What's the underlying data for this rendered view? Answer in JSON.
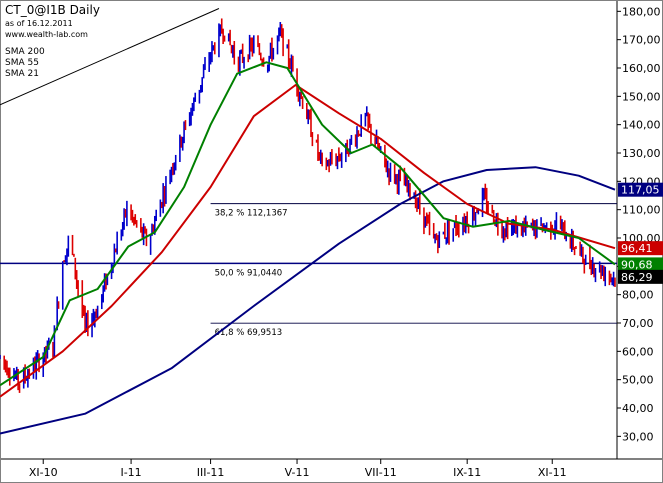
{
  "chart_data": {
    "type": "line",
    "title": "CT_0@I1B Daily",
    "subtitle": "as of 16.12.2011",
    "source": "www.wealth-lab.com",
    "y_range": [
      22,
      184
    ],
    "y_ticks": [
      "180,00",
      "170,00",
      "160,00",
      "150,00",
      "140,00",
      "130,00",
      "120,00",
      "110,00",
      "100,00",
      "90,00",
      "80,00",
      "70,00",
      "60,00",
      "50,00",
      "40,00",
      "30,00"
    ],
    "y_tick_values": [
      180,
      170,
      160,
      150,
      140,
      130,
      120,
      110,
      100,
      90,
      80,
      70,
      60,
      50,
      40,
      30
    ],
    "x_ticks": [
      "XI-10",
      "I-11",
      "III-11",
      "V-11",
      "VII-11",
      "IX-11",
      "XI-11"
    ],
    "x_tick_dates": [
      "2010-11-01",
      "2011-01-03",
      "2011-03-01",
      "2011-05-02",
      "2011-07-01",
      "2011-09-01",
      "2011-11-01"
    ],
    "date_range": [
      "2010-10-01",
      "2011-12-16"
    ],
    "legend": [
      {
        "name": "SMA 200",
        "color": "#000080"
      },
      {
        "name": "SMA 55",
        "color": "#cc0000"
      },
      {
        "name": "SMA 21",
        "color": "#008000"
      }
    ],
    "fib_levels": [
      {
        "label": "38,2 % 112,1367",
        "value": 112.1367,
        "start": "2011-03-01"
      },
      {
        "label": "50,0 % 91,0440",
        "value": 91.044,
        "start": "2010-10-01"
      },
      {
        "label": "61,8 % 69,9513",
        "value": 69.9513,
        "start": "2011-03-01"
      }
    ],
    "trendline": [
      {
        "date": "2010-10-01",
        "value": 147
      },
      {
        "date": "2011-03-07",
        "value": 181
      }
    ],
    "value_tags": [
      {
        "label": "117,05",
        "value": 117.05,
        "bg": "#000080",
        "fg": "#ffffff"
      },
      {
        "label": "96,41",
        "value": 96.41,
        "bg": "#cc0000",
        "fg": "#ffffff"
      },
      {
        "label": "90,68",
        "value": 90.68,
        "bg": "#008000",
        "fg": "#ffffff"
      },
      {
        "label": "86,29",
        "value": 86.29,
        "bg": "#000000",
        "fg": "#ffffff"
      }
    ],
    "price_path": [
      {
        "date": "2010-10-01",
        "value": 58
      },
      {
        "date": "2010-10-15",
        "value": 49
      },
      {
        "date": "2010-11-08",
        "value": 62
      },
      {
        "date": "2010-11-15",
        "value": 92
      },
      {
        "date": "2010-11-20",
        "value": 100
      },
      {
        "date": "2010-12-01",
        "value": 68
      },
      {
        "date": "2010-12-10",
        "value": 75
      },
      {
        "date": "2010-12-31",
        "value": 110
      },
      {
        "date": "2011-01-15",
        "value": 98
      },
      {
        "date": "2011-02-01",
        "value": 125
      },
      {
        "date": "2011-02-15",
        "value": 145
      },
      {
        "date": "2011-03-01",
        "value": 165
      },
      {
        "date": "2011-03-10",
        "value": 174
      },
      {
        "date": "2011-03-20",
        "value": 162
      },
      {
        "date": "2011-04-01",
        "value": 168
      },
      {
        "date": "2011-04-10",
        "value": 162
      },
      {
        "date": "2011-04-20",
        "value": 172
      },
      {
        "date": "2011-05-05",
        "value": 150
      },
      {
        "date": "2011-05-20",
        "value": 125
      },
      {
        "date": "2011-06-05",
        "value": 130
      },
      {
        "date": "2011-06-20",
        "value": 142
      },
      {
        "date": "2011-07-05",
        "value": 125
      },
      {
        "date": "2011-07-25",
        "value": 115
      },
      {
        "date": "2011-08-08",
        "value": 99
      },
      {
        "date": "2011-08-20",
        "value": 103
      },
      {
        "date": "2011-09-05",
        "value": 108
      },
      {
        "date": "2011-09-12",
        "value": 114
      },
      {
        "date": "2011-09-25",
        "value": 104
      },
      {
        "date": "2011-10-15",
        "value": 103
      },
      {
        "date": "2011-11-05",
        "value": 105
      },
      {
        "date": "2011-11-25",
        "value": 92
      },
      {
        "date": "2011-12-16",
        "value": 86
      }
    ],
    "sma21": [
      {
        "date": "2010-10-01",
        "value": 48
      },
      {
        "date": "2010-11-01",
        "value": 58
      },
      {
        "date": "2010-11-20",
        "value": 78
      },
      {
        "date": "2010-12-10",
        "value": 82
      },
      {
        "date": "2011-01-01",
        "value": 97
      },
      {
        "date": "2011-01-20",
        "value": 102
      },
      {
        "date": "2011-02-10",
        "value": 118
      },
      {
        "date": "2011-03-01",
        "value": 140
      },
      {
        "date": "2011-03-20",
        "value": 158
      },
      {
        "date": "2011-04-10",
        "value": 162
      },
      {
        "date": "2011-04-25",
        "value": 160
      },
      {
        "date": "2011-05-20",
        "value": 140
      },
      {
        "date": "2011-06-10",
        "value": 130
      },
      {
        "date": "2011-06-25",
        "value": 133
      },
      {
        "date": "2011-07-15",
        "value": 125
      },
      {
        "date": "2011-08-15",
        "value": 107
      },
      {
        "date": "2011-09-05",
        "value": 104
      },
      {
        "date": "2011-10-01",
        "value": 106
      },
      {
        "date": "2011-10-25",
        "value": 103
      },
      {
        "date": "2011-11-20",
        "value": 100
      },
      {
        "date": "2011-12-16",
        "value": 90.68
      }
    ],
    "sma55": [
      {
        "date": "2010-10-01",
        "value": 44
      },
      {
        "date": "2010-11-15",
        "value": 60
      },
      {
        "date": "2010-12-20",
        "value": 76
      },
      {
        "date": "2011-01-25",
        "value": 95
      },
      {
        "date": "2011-03-01",
        "value": 118
      },
      {
        "date": "2011-04-01",
        "value": 143
      },
      {
        "date": "2011-05-01",
        "value": 154
      },
      {
        "date": "2011-06-01",
        "value": 144
      },
      {
        "date": "2011-07-01",
        "value": 135
      },
      {
        "date": "2011-08-01",
        "value": 123
      },
      {
        "date": "2011-09-01",
        "value": 112
      },
      {
        "date": "2011-10-01",
        "value": 105
      },
      {
        "date": "2011-11-01",
        "value": 103
      },
      {
        "date": "2011-12-16",
        "value": 96.41
      }
    ],
    "sma200": [
      {
        "date": "2010-10-01",
        "value": 31
      },
      {
        "date": "2010-12-01",
        "value": 38
      },
      {
        "date": "2011-02-01",
        "value": 54
      },
      {
        "date": "2011-04-01",
        "value": 76
      },
      {
        "date": "2011-06-01",
        "value": 98
      },
      {
        "date": "2011-07-15",
        "value": 112
      },
      {
        "date": "2011-08-15",
        "value": 120
      },
      {
        "date": "2011-09-15",
        "value": 124
      },
      {
        "date": "2011-10-20",
        "value": 125
      },
      {
        "date": "2011-11-20",
        "value": 122
      },
      {
        "date": "2011-12-16",
        "value": 117.05
      }
    ]
  }
}
